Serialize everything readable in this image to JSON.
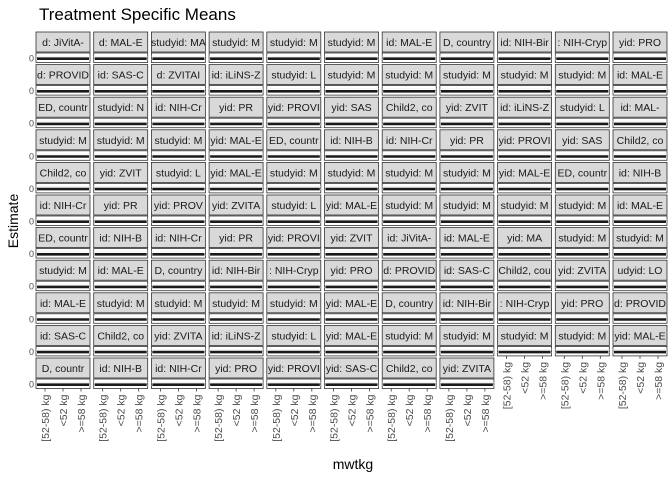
{
  "chart_data": {
    "type": "scatter",
    "title": "Treatment Specific Means",
    "xlabel": "mwtkg",
    "ylabel": "Estimate",
    "y_tick_label": "0",
    "x_categories": [
      "[52-58) kg",
      "<52 kg",
      ">=58 kg"
    ],
    "facet_grid": {
      "rows": 11,
      "cols": 11
    },
    "panels": [
      "d: JiVitA-",
      "d: MAL-E",
      "studyid: MA",
      "studyid: M",
      "studyid: M",
      "studyid: M",
      "id: MAL-E",
      "D, country",
      "id: NIH-Bir",
      ": NIH-Cryp",
      "yid: PRO",
      "d: PROVID",
      "id: SAS-C",
      "d: ZVITAI",
      "id: iLiNS-Z",
      "studyid: L",
      "studyid: M",
      "studyid: M",
      "studyid: M",
      "studyid: M",
      "studyid: M",
      "id: MAL-E",
      "ED, countr",
      "studyid: N",
      "id: NIH-Cr",
      "yid: PR",
      "yid: PROVI",
      "yid: SAS",
      "Child2, co",
      "yid: ZVIT",
      "id: iLiNS-Z",
      "studyid: L",
      "id: MAL-",
      "studyid: M",
      "studyid: M",
      "studyid: M",
      "yid: MAL-E",
      "ED, countr",
      "id: NIH-B",
      "id: NIH-Cr",
      "yid: PR",
      "yid: PROVI",
      "yid: SAS",
      "Child2, co",
      "Child2, co",
      "yid: ZVIT",
      "studyid: L",
      "yid: MAL-E",
      "studyid: M",
      "studyid: M",
      "studyid: M",
      "studyid: M",
      "yid: MAL-E",
      "ED, countr",
      "id: NIH-B",
      "id: NIH-Cr",
      "yid: PR",
      "yid: PROV",
      "yid: ZVITA",
      "studyid: L",
      "yid: MAL-E",
      "studyid: M",
      "studyid: M",
      "studyid: M",
      "studyid: M",
      "id: MAL-E",
      "ED, countr",
      "id: NIH-B",
      "id: NIH-Cr",
      "yid: PR",
      "yid: PROVI",
      "yid: ZVIT",
      "id: JiVitA-",
      "id: MAL-E",
      "yid: MA",
      "studyid: M",
      "studyid: M",
      "studyid: M",
      "id: MAL-E",
      "D, country",
      "id: NIH-Bir",
      ": NIH-Cryp",
      "yid: PRO",
      "d: PROVID",
      "id: SAS-C",
      "Child2, cou",
      "yid: ZVITA",
      "udyid: LO",
      "id: MAL-E",
      "studyid: M",
      "studyid: M",
      "studyid: M",
      "studyid: M",
      "yid: MAL-E",
      "D, country",
      "id: NIH-Bir",
      ": NIH-Cryp",
      "yid: PRO",
      "d: PROVID",
      "id: SAS-C",
      "Child2, co",
      "yid: ZVITA",
      "id: iLiNS-Z",
      "studyid: L",
      "yid: MAL-E",
      "studyid: M",
      "studyid: M",
      "studyid: M",
      "studyid: M",
      "yid: MAL-E",
      "D, countr",
      "id: NIH-B",
      "id: NIH-Cr",
      "yid: PRO",
      "yid: PROVI",
      "yid: SAS-C",
      "Child2, co",
      "yid: ZVITA"
    ],
    "last_row_panels": 8,
    "grid": true,
    "legend": "none"
  }
}
